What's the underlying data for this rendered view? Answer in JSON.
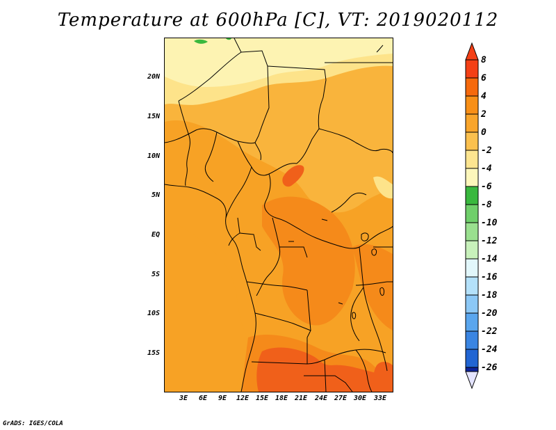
{
  "title": "Temperature at 600hPa [C], VT: 2019020112",
  "footer": "GrADS: IGES/COLA",
  "axes": {
    "lat_labels": [
      "20N",
      "15N",
      "10N",
      "5N",
      "EQ",
      "5S",
      "10S",
      "15S"
    ],
    "lon_labels": [
      "3E",
      "6E",
      "9E",
      "12E",
      "15E",
      "18E",
      "21E",
      "24E",
      "27E",
      "30E",
      "33E"
    ]
  },
  "colorbar": {
    "labels": [
      "8",
      "6",
      "4",
      "2",
      "0",
      "-2",
      "-4",
      "-6",
      "-8",
      "-10",
      "-12",
      "-14",
      "-16",
      "-18",
      "-20",
      "-22",
      "-24",
      "-26"
    ],
    "colors": [
      "#ffbfc3",
      "#f44016",
      "#f6690c",
      "#f88f17",
      "#f9a52b",
      "#fbc04e",
      "#fde590",
      "#fdf7bb",
      "#39b83e",
      "#6fcf6a",
      "#9ae08f",
      "#c8f1bb",
      "#e2f7fb",
      "#b4e1fa",
      "#8cc8f6",
      "#5aa6ee",
      "#3a85e2",
      "#2165d3",
      "#1845b5",
      "#0e239a",
      "#000f6b",
      "#e4e4ff"
    ]
  },
  "colors": {
    "warm_1": "#f9b43c",
    "warm_2": "#f7a225",
    "warm_3": "#f58a1a",
    "hot": "#f0601a",
    "cool": "#fde38a",
    "coolest": "#fdf3b2",
    "green": "#39b83e"
  }
}
